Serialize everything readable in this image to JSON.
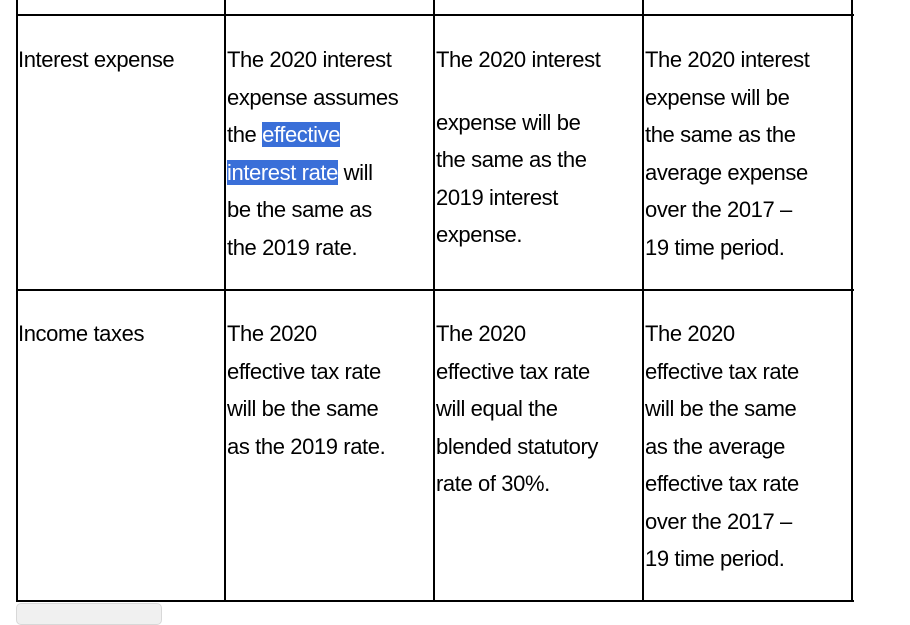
{
  "table": {
    "rows": [
      {
        "label": "Interest expense",
        "cells": [
          {
            "lines": [
              "The 2020 interest",
              "expense assumes"
            ],
            "line3_pre": "the ",
            "line3_hl": "effective",
            "line4_hl": "interest rate",
            "line4_post": " will",
            "lines_after": [
              "be the same as",
              "the 2019 rate."
            ]
          },
          {
            "lines": [
              "The 2020 interest",
              "expense will be",
              "the same as the",
              "2019 interest",
              "expense."
            ]
          },
          {
            "lines": [
              "The 2020 interest",
              "expense will be",
              "the same as the",
              "average expense",
              "over the 2017 –",
              "19 time period."
            ]
          }
        ]
      },
      {
        "label": "Income taxes",
        "cells": [
          {
            "lines": [
              "The 2020",
              "effective tax rate",
              "will be the same",
              "as the 2019 rate."
            ]
          },
          {
            "lines": [
              "The 2020",
              "effective tax rate",
              "will equal the",
              "blended statutory",
              "rate of 30%."
            ]
          },
          {
            "lines": [
              "The 2020",
              "effective tax rate",
              "will be the same",
              "as the average",
              "effective tax rate",
              "over the 2017 –",
              "19 time period."
            ]
          }
        ]
      }
    ]
  },
  "colors": {
    "selection": "#3a6fd8",
    "border": "#000000"
  }
}
